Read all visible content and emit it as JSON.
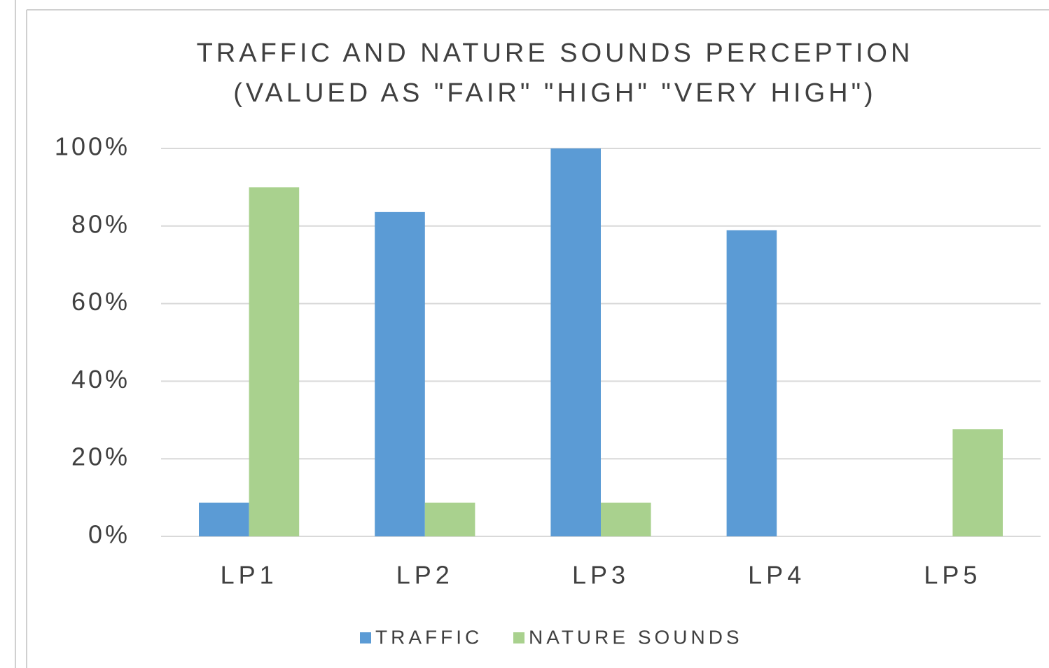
{
  "chart_data": {
    "type": "bar",
    "title": "TRAFFIC AND NATURE SOUNDS PERCEPTION (VALUED AS \"FAIR\" \"HIGH\" \"VERY HIGH\")",
    "categories": [
      "LP1",
      "LP2",
      "LP3",
      "LP4",
      "LP5"
    ],
    "series": [
      {
        "name": "TRAFFIC",
        "color": "#5b9bd5",
        "values": [
          8.7,
          83.6,
          100,
          78.9,
          0
        ]
      },
      {
        "name": "NATURE SOUNDS",
        "color": "#a9d18e",
        "values": [
          90,
          8.7,
          8.7,
          0,
          27.6
        ]
      }
    ],
    "ylim": [
      0,
      100
    ],
    "yticks": [
      {
        "value": 0,
        "label": "0%"
      },
      {
        "value": 20,
        "label": "20%"
      },
      {
        "value": 40,
        "label": "40%"
      },
      {
        "value": 60,
        "label": "60%"
      },
      {
        "value": 80,
        "label": "80%"
      },
      {
        "value": 100,
        "label": "100%"
      }
    ],
    "grid": true,
    "legend": "bottom"
  }
}
